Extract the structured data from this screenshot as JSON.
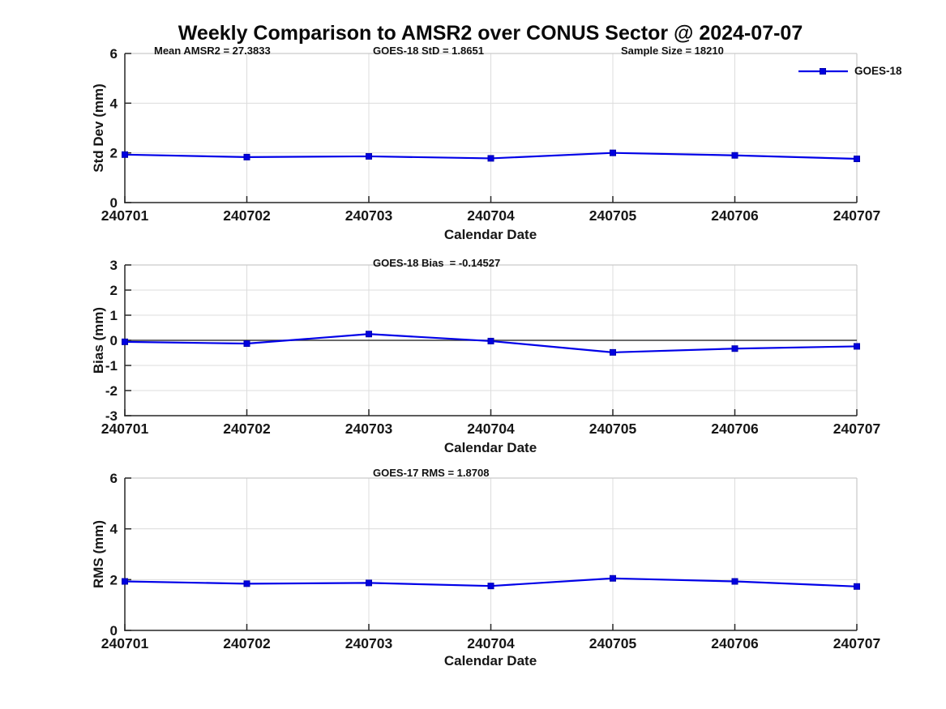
{
  "figure": {
    "title": "Weekly Comparison to AMSR2 over CONUS Sector @ 2024-07-07",
    "legend": {
      "label": "GOES-18"
    }
  },
  "colors": {
    "line": "#0000e8",
    "marker_fill": "#0000e0",
    "marker_edge": "#0000b0",
    "grid": "#dcdcdc",
    "spine_dark": "#262626",
    "spine_light": "#c9c9c9",
    "zero_line": "#3a3a3a",
    "text": "#161616"
  },
  "chart_data": [
    {
      "type": "line",
      "name": "std-dev",
      "ylabel": "Std Dev (mm)",
      "xlabel": "Calendar Date",
      "categories": [
        "240701",
        "240702",
        "240703",
        "240704",
        "240705",
        "240706",
        "240707"
      ],
      "series": [
        {
          "name": "GOES-18",
          "values": [
            1.93,
            1.83,
            1.86,
            1.78,
            2.0,
            1.9,
            1.76
          ]
        }
      ],
      "ylim": [
        0,
        6
      ],
      "yticks": [
        0,
        2,
        4,
        6
      ],
      "grid": true,
      "zero_line": false,
      "legend_position": "northeast",
      "annotations": [
        {
          "text": "Mean AMSR2 = 27.3833"
        },
        {
          "text": "GOES-18 StD = 1.8651"
        },
        {
          "text": "Sample Size = 18210"
        }
      ]
    },
    {
      "type": "line",
      "name": "bias",
      "ylabel": "Bias (mm)",
      "xlabel": "Calendar Date",
      "categories": [
        "240701",
        "240702",
        "240703",
        "240704",
        "240705",
        "240706",
        "240707"
      ],
      "series": [
        {
          "name": "GOES-18",
          "values": [
            -0.06,
            -0.13,
            0.25,
            -0.03,
            -0.48,
            -0.33,
            -0.24
          ]
        }
      ],
      "ylim": [
        -3,
        3
      ],
      "yticks": [
        -3,
        -2,
        -1,
        0,
        1,
        2,
        3
      ],
      "grid": true,
      "zero_line": true,
      "annotations": [
        {
          "text": "GOES-18 Bias  = -0.14527"
        }
      ]
    },
    {
      "type": "line",
      "name": "rms",
      "ylabel": "RMS (mm)",
      "xlabel": "Calendar Date",
      "categories": [
        "240701",
        "240702",
        "240703",
        "240704",
        "240705",
        "240706",
        "240707"
      ],
      "series": [
        {
          "name": "GOES-18",
          "values": [
            1.93,
            1.84,
            1.87,
            1.75,
            2.05,
            1.93,
            1.73
          ]
        }
      ],
      "ylim": [
        0,
        6
      ],
      "yticks": [
        0,
        2,
        4,
        6
      ],
      "grid": true,
      "zero_line": false,
      "annotations": [
        {
          "text": "GOES-17 RMS = 1.8708"
        }
      ]
    }
  ]
}
